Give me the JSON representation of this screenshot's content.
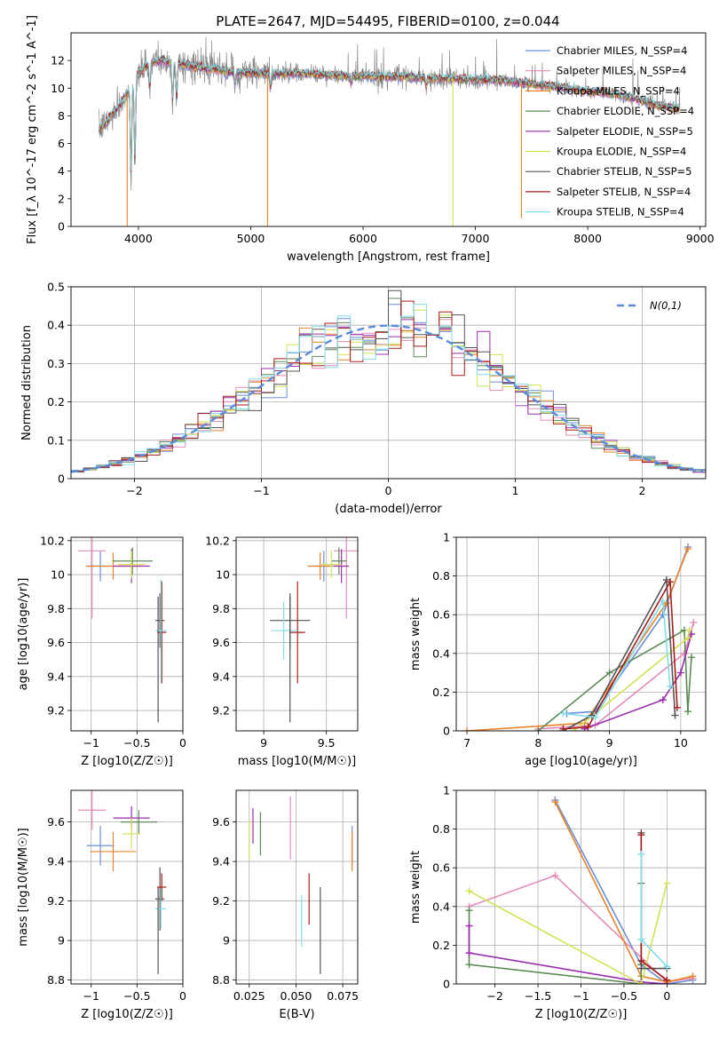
{
  "figure": {
    "title": "PLATE=2647, MJD=54495, FIBERID=0100, z=0.044"
  },
  "chart_data": [
    {
      "type": "line",
      "id": "spectrum",
      "title": "PLATE=2647, MJD=54495, FIBERID=0100, z=0.044",
      "xlabel": "wavelength [Angstrom, rest frame]",
      "ylabel": "Flux [f_λ 10^-17 erg cm^-2 s^-1 A^-1]",
      "xlim": [
        3400,
        9050
      ],
      "ylim": [
        0,
        14
      ],
      "xticks": [
        4000,
        5000,
        6000,
        7000,
        8000,
        9000
      ],
      "yticks": [
        0,
        2,
        4,
        6,
        8,
        10,
        12
      ],
      "grid": false,
      "legend_location": "upper right",
      "series": [
        {
          "name": "Chabrier MILES, N_SSP=4",
          "color": "#6b8fd6"
        },
        {
          "name": "Salpeter MILES, N_SSP=4",
          "color": "#e38cba"
        },
        {
          "name": "Kroupa MILES, N_SSP=4",
          "color": "#e8832a"
        },
        {
          "name": "Chabrier ELODIE, N_SSP=4",
          "color": "#5d8a56"
        },
        {
          "name": "Salpeter ELODIE, N_SSP=5",
          "color": "#9b2fae"
        },
        {
          "name": "Kroupa ELODIE, N_SSP=4",
          "color": "#d4e157"
        },
        {
          "name": "Chabrier STELIB, N_SSP=5",
          "color": "#555555"
        },
        {
          "name": "Salpeter STELIB, N_SSP=4",
          "color": "#a61c1c"
        },
        {
          "name": "Kroupa STELIB, N_SSP=4",
          "color": "#80deea"
        }
      ],
      "data_color": "#8a8a8a",
      "continuum_points": {
        "x": [
          3650,
          3700,
          3800,
          3900,
          4000,
          4100,
          4200,
          4400,
          4600,
          4800,
          5000,
          5200,
          5400,
          5600,
          5800,
          6000,
          6200,
          6400,
          6600,
          6800,
          7000,
          7200,
          7400,
          7600,
          7800,
          8000,
          8200,
          8400,
          8600,
          8800
        ],
        "y": [
          7.0,
          7.4,
          8.4,
          9.6,
          11.0,
          11.8,
          12.0,
          11.7,
          11.4,
          11.2,
          11.1,
          11.0,
          11.1,
          11.0,
          10.9,
          10.9,
          10.8,
          10.8,
          10.7,
          10.7,
          10.6,
          10.6,
          10.4,
          10.2,
          10.0,
          9.8,
          9.6,
          9.3,
          8.8,
          8.5
        ]
      },
      "absorption_lines": [
        {
          "x": 3934,
          "y": 3.0
        },
        {
          "x": 3969,
          "y": 4.2
        },
        {
          "x": 4102,
          "y": 9.8
        },
        {
          "x": 4304,
          "y": 8.8
        },
        {
          "x": 4340,
          "y": 9.0
        },
        {
          "x": 4861,
          "y": 10.2
        },
        {
          "x": 5175,
          "y": 9.9
        },
        {
          "x": 5893,
          "y": 10.3
        },
        {
          "x": 6563,
          "y": 10.0
        }
      ],
      "spikes": [
        {
          "x": 3900,
          "y": 0.0,
          "color": "#e8832a"
        },
        {
          "x": 5150,
          "y": 0.0,
          "color": "#e8832a"
        },
        {
          "x": 6800,
          "y": 0.0,
          "color": "#d4e157"
        },
        {
          "x": 7410,
          "y": 0.6,
          "color": "#e8832a"
        }
      ]
    },
    {
      "type": "step",
      "id": "residual-hist",
      "xlabel": "(data-model)/error",
      "ylabel": "Normed distribution",
      "xlim": [
        -2.5,
        2.5
      ],
      "ylim": [
        0,
        0.5
      ],
      "xticks": [
        -2,
        -1,
        0,
        1,
        2
      ],
      "yticks": [
        0.0,
        0.1,
        0.2,
        0.3,
        0.4,
        0.5
      ],
      "grid": true,
      "legend": [
        {
          "name": "N(0,1)",
          "color": "#5b8bd9",
          "style": "dashed"
        }
      ],
      "legend_location": "upper right",
      "bin_width": 0.1,
      "series_colors": [
        "#6b8fd6",
        "#e38cba",
        "#e8832a",
        "#5d8a56",
        "#9b2fae",
        "#d4e157",
        "#555555",
        "#a61c1c",
        "#80deea"
      ],
      "gaussian": {
        "mean": 0,
        "sigma": 1
      }
    },
    {
      "type": "scatter_errorbar",
      "id": "age-vs-Z",
      "xlabel": "Z [log10(Z/Z☉)]",
      "ylabel": "age [log10(age/yr)]",
      "xlim": [
        -1.22,
        0.0
      ],
      "ylim": [
        9.08,
        10.22
      ],
      "xticks": [
        -1.0,
        -0.5,
        0.0
      ],
      "yticks": [
        9.2,
        9.4,
        9.6,
        9.8,
        10.0,
        10.2
      ],
      "grid": true,
      "points": [
        {
          "x": -0.9,
          "xerr": 0.15,
          "y": 10.05,
          "yerr": 0.09,
          "color": "#6b8fd6"
        },
        {
          "x": -0.99,
          "xerr": 0.15,
          "y": 10.14,
          "yerr": 0.4,
          "color": "#e38cba"
        },
        {
          "x": -0.76,
          "xerr": 0.3,
          "y": 10.05,
          "yerr": 0.08,
          "color": "#e8832a"
        },
        {
          "x": -0.55,
          "xerr": 0.22,
          "y": 10.08,
          "yerr": 0.08,
          "color": "#5d8a56"
        },
        {
          "x": -0.56,
          "xerr": 0.2,
          "y": 10.05,
          "yerr": 0.1,
          "color": "#9b2fae"
        },
        {
          "x": -0.56,
          "xerr": 0.15,
          "y": 10.06,
          "yerr": 0.08,
          "color": "#d4e157"
        },
        {
          "x": -0.25,
          "xerr": 0.05,
          "y": 9.73,
          "yerr": 0.16,
          "color": "#555555"
        },
        {
          "x": -0.23,
          "xerr": 0.05,
          "y": 9.66,
          "yerr": 0.3,
          "color": "#a61c1c"
        },
        {
          "x": -0.24,
          "xerr": 0.06,
          "y": 9.67,
          "yerr": 0.3,
          "color": "#80deea"
        },
        {
          "x": -0.27,
          "xerr": 0.0,
          "y": 9.5,
          "yerr": 0.37,
          "color": "#555555"
        }
      ]
    },
    {
      "type": "scatter_errorbar",
      "id": "age-vs-mass",
      "xlabel": "mass [log10(M/M☉)]",
      "ylabel": "",
      "xlim": [
        8.78,
        9.75
      ],
      "ylim": [
        9.08,
        10.22
      ],
      "xticks": [
        9.0,
        9.5
      ],
      "yticks": [
        9.2,
        9.4,
        9.6,
        9.8,
        10.0,
        10.2
      ],
      "grid": true,
      "points": [
        {
          "x": 9.48,
          "xerr": 0.1,
          "y": 10.05,
          "yerr": 0.09,
          "color": "#6b8fd6"
        },
        {
          "x": 9.66,
          "xerr": 0.1,
          "y": 10.14,
          "yerr": 0.4,
          "color": "#e38cba"
        },
        {
          "x": 9.45,
          "xerr": 0.1,
          "y": 10.05,
          "yerr": 0.08,
          "color": "#e8832a"
        },
        {
          "x": 9.6,
          "xerr": 0.06,
          "y": 10.08,
          "yerr": 0.08,
          "color": "#5d8a56"
        },
        {
          "x": 9.62,
          "xerr": 0.06,
          "y": 10.05,
          "yerr": 0.1,
          "color": "#9b2fae"
        },
        {
          "x": 9.54,
          "xerr": 0.08,
          "y": 10.06,
          "yerr": 0.08,
          "color": "#d4e157"
        },
        {
          "x": 9.21,
          "xerr": 0.16,
          "y": 9.73,
          "yerr": 0.16,
          "color": "#555555"
        },
        {
          "x": 9.27,
          "xerr": 0.06,
          "y": 9.66,
          "yerr": 0.3,
          "color": "#a61c1c"
        },
        {
          "x": 9.16,
          "xerr": 0.1,
          "y": 9.67,
          "yerr": 0.17,
          "color": "#80deea"
        },
        {
          "x": 9.21,
          "xerr": 0.0,
          "y": 9.5,
          "yerr": 0.37,
          "color": "#555555"
        }
      ]
    },
    {
      "type": "line",
      "id": "massweight-vs-age",
      "xlabel": "age [log10(age/yr)]",
      "ylabel": "mass weight",
      "xlim": [
        6.85,
        10.35
      ],
      "ylim": [
        0,
        1.0
      ],
      "xticks": [
        7,
        8,
        9,
        10
      ],
      "yticks": [
        0.0,
        0.2,
        0.4,
        0.6,
        0.8,
        1.0
      ],
      "grid": true,
      "series": [
        {
          "color": "#6b8fd6",
          "x": [
            8.4,
            8.8,
            9.75,
            10.1
          ],
          "y": [
            0.09,
            0.1,
            0.6,
            0.95
          ]
        },
        {
          "color": "#e38cba",
          "x": [
            8.0,
            8.8,
            10.05,
            10.18
          ],
          "y": [
            0.01,
            0.03,
            0.4,
            0.56
          ]
        },
        {
          "color": "#e8832a",
          "x": [
            7.0,
            8.65,
            9.8,
            10.1
          ],
          "y": [
            0.0,
            0.04,
            0.66,
            0.94
          ]
        },
        {
          "color": "#5d8a56",
          "x": [
            8.0,
            9.0,
            10.05,
            10.1,
            10.15
          ],
          "y": [
            0.0,
            0.3,
            0.52,
            0.1,
            0.38
          ]
        },
        {
          "color": "#9b2fae",
          "x": [
            8.65,
            9.75,
            10.0,
            10.15
          ],
          "y": [
            0.01,
            0.16,
            0.3,
            0.5
          ]
        },
        {
          "color": "#d4e157",
          "x": [
            8.5,
            10.1,
            10.12
          ],
          "y": [
            0.0,
            0.48,
            0.52
          ]
        },
        {
          "color": "#555555",
          "x": [
            8.35,
            8.75,
            9.8,
            9.92
          ],
          "y": [
            0.0,
            0.08,
            0.78,
            0.08
          ]
        },
        {
          "color": "#a61c1c",
          "x": [
            8.35,
            8.7,
            9.85,
            9.95
          ],
          "y": [
            0.01,
            0.02,
            0.77,
            0.12
          ]
        },
        {
          "color": "#80deea",
          "x": [
            8.35,
            8.8,
            9.75,
            9.85
          ],
          "y": [
            0.09,
            0.07,
            0.67,
            0.23
          ]
        }
      ]
    },
    {
      "type": "scatter_errorbar",
      "id": "mass-vs-Z",
      "xlabel": "Z [log10(Z/Z☉)]",
      "ylabel": "mass [log10(M/M☉)]",
      "xlim": [
        -1.22,
        0.0
      ],
      "ylim": [
        8.78,
        9.76
      ],
      "xticks": [
        -1.0,
        -0.5,
        0.0
      ],
      "yticks": [
        8.8,
        9.0,
        9.2,
        9.4,
        9.6
      ],
      "grid": true,
      "points": [
        {
          "x": -0.9,
          "xerr": 0.15,
          "y": 9.48,
          "yerr": 0.1,
          "color": "#6b8fd6"
        },
        {
          "x": -0.99,
          "xerr": 0.15,
          "y": 9.66,
          "yerr": 0.1,
          "color": "#e38cba"
        },
        {
          "x": -0.76,
          "xerr": 0.25,
          "y": 9.45,
          "yerr": 0.1,
          "color": "#e8832a"
        },
        {
          "x": -0.48,
          "xerr": 0.2,
          "y": 9.6,
          "yerr": 0.06,
          "color": "#5d8a56"
        },
        {
          "x": -0.56,
          "xerr": 0.2,
          "y": 9.62,
          "yerr": 0.06,
          "color": "#9b2fae"
        },
        {
          "x": -0.56,
          "xerr": 0.1,
          "y": 9.54,
          "yerr": 0.08,
          "color": "#d4e157"
        },
        {
          "x": -0.25,
          "xerr": 0.05,
          "y": 9.21,
          "yerr": 0.16,
          "color": "#555555"
        },
        {
          "x": -0.23,
          "xerr": 0.05,
          "y": 9.27,
          "yerr": 0.07,
          "color": "#a61c1c"
        },
        {
          "x": -0.24,
          "xerr": 0.06,
          "y": 9.16,
          "yerr": 0.1,
          "color": "#80deea"
        },
        {
          "x": -0.27,
          "xerr": 0.0,
          "y": 9.05,
          "yerr": 0.22,
          "color": "#555555"
        }
      ]
    },
    {
      "type": "scatter_errorbar",
      "id": "mass-vs-ebv",
      "xlabel": "E(B-V)",
      "ylabel": "",
      "xlim": [
        0.018,
        0.083
      ],
      "ylim": [
        8.78,
        9.76
      ],
      "xticks": [
        0.025,
        0.05,
        0.075
      ],
      "xtick_labels": [
        "0.025",
        "0.050",
        "0.075"
      ],
      "yticks": [
        8.8,
        9.0,
        9.2,
        9.4,
        9.6
      ],
      "grid": true,
      "points": [
        {
          "x": 0.08,
          "xerr": 0,
          "y": 9.48,
          "yerr": 0.1,
          "color": "#6b8fd6"
        },
        {
          "x": 0.047,
          "xerr": 0,
          "y": 9.57,
          "yerr": 0.16,
          "color": "#e38cba"
        },
        {
          "x": 0.08,
          "xerr": 0,
          "y": 9.45,
          "yerr": 0.1,
          "color": "#e8832a"
        },
        {
          "x": 0.031,
          "xerr": 0,
          "y": 9.54,
          "yerr": 0.11,
          "color": "#5d8a56"
        },
        {
          "x": 0.027,
          "xerr": 0,
          "y": 9.58,
          "yerr": 0.09,
          "color": "#9b2fae"
        },
        {
          "x": 0.025,
          "xerr": 0,
          "y": 9.51,
          "yerr": 0.1,
          "color": "#d4e157"
        },
        {
          "x": 0.063,
          "xerr": 0,
          "y": 9.05,
          "yerr": 0.22,
          "color": "#555555"
        },
        {
          "x": 0.057,
          "xerr": 0,
          "y": 9.21,
          "yerr": 0.13,
          "color": "#a61c1c"
        },
        {
          "x": 0.053,
          "xerr": 0,
          "y": 9.1,
          "yerr": 0.13,
          "color": "#80deea"
        }
      ]
    },
    {
      "type": "line",
      "id": "massweight-vs-Z",
      "xlabel": "Z [log10(Z/Z☉)]",
      "ylabel": "mass weight",
      "xlim": [
        -2.45,
        0.45
      ],
      "ylim": [
        0,
        1.0
      ],
      "xticks": [
        -2.0,
        -1.5,
        -1.0,
        -0.5,
        0.0
      ],
      "yticks": [
        0.0,
        0.2,
        0.4,
        0.6,
        0.8,
        1.0
      ],
      "grid": true,
      "series": [
        {
          "color": "#6b8fd6",
          "x": [
            -1.3,
            -0.3,
            0.0,
            0.3
          ],
          "y": [
            0.95,
            0.1,
            0.0,
            0.02
          ]
        },
        {
          "color": "#e38cba",
          "x": [
            -2.3,
            -1.3,
            0.0,
            0.3
          ],
          "y": [
            0.4,
            0.56,
            0.01,
            0.03
          ]
        },
        {
          "color": "#e8832a",
          "x": [
            -1.3,
            -0.3,
            0.0,
            0.3
          ],
          "y": [
            0.94,
            0.04,
            0.01,
            0.04
          ]
        },
        {
          "color": "#5d8a56",
          "x": [
            -2.3,
            -2.3,
            -0.3,
            -0.3,
            -0.3
          ],
          "y": [
            0.38,
            0.1,
            0.0,
            0.52,
            0.1
          ]
        },
        {
          "color": "#9b2fae",
          "x": [
            -2.3,
            -2.3,
            -0.3,
            0.0
          ],
          "y": [
            0.3,
            0.16,
            0.01,
            0.0
          ]
        },
        {
          "color": "#d4e157",
          "x": [
            -2.3,
            -0.3,
            0.0
          ],
          "y": [
            0.48,
            0.0,
            0.52
          ]
        },
        {
          "color": "#555555",
          "x": [
            -0.3,
            -0.3,
            0.0
          ],
          "y": [
            0.78,
            0.08,
            0.08
          ]
        },
        {
          "color": "#a61c1c",
          "x": [
            -0.3,
            -0.3,
            0.0
          ],
          "y": [
            0.77,
            0.12,
            0.02
          ]
        },
        {
          "color": "#80deea",
          "x": [
            -0.3,
            -0.3,
            0.0
          ],
          "y": [
            0.67,
            0.23,
            0.09
          ]
        }
      ]
    }
  ]
}
